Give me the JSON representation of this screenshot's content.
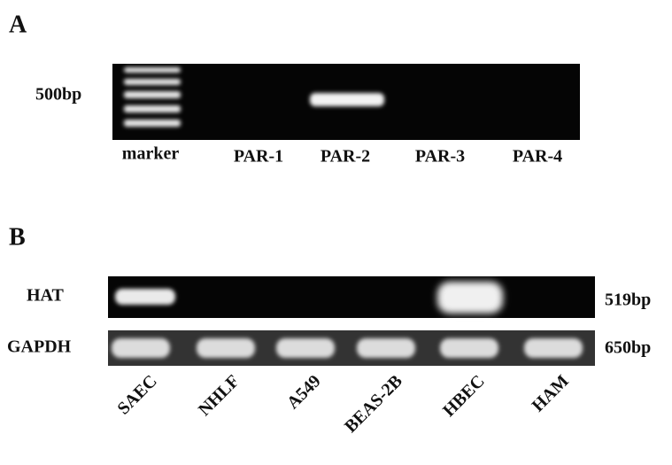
{
  "panel_a": {
    "label": "A",
    "size_marker": "500bp",
    "lanes": [
      "marker",
      "PAR-1",
      "PAR-2",
      "PAR-3",
      "PAR-4"
    ]
  },
  "panel_b": {
    "label": "B",
    "rows": [
      {
        "name": "HAT",
        "size": "519bp"
      },
      {
        "name": "GAPDH",
        "size": "650bp"
      }
    ],
    "lanes": [
      "SAEC",
      "NHLF",
      "A549",
      "BEAS-2B",
      "HBEC",
      "HAM"
    ]
  }
}
